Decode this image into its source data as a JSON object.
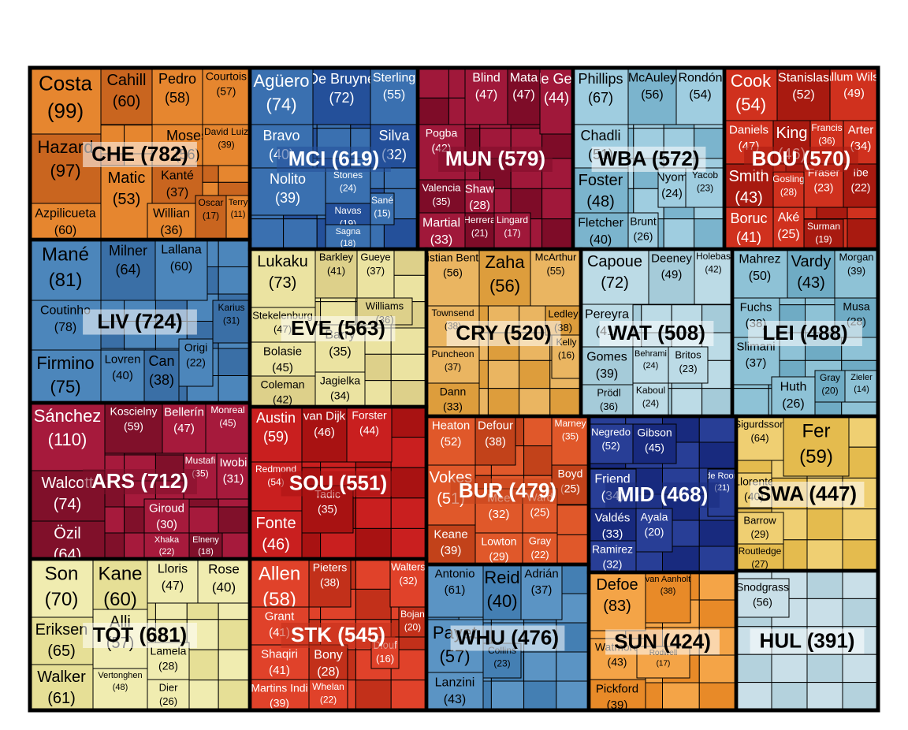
{
  "chart_data": {
    "type": "treemap",
    "title": "",
    "teams": [
      {
        "name": "CHE",
        "total": 782,
        "color": "#e6862f",
        "color_dark": "#c9651f",
        "label_light": false,
        "players": [
          {
            "name": "Costa",
            "value": 99
          },
          {
            "name": "Cahill",
            "value": 60
          },
          {
            "name": "Pedro",
            "value": 58
          },
          {
            "name": "Courtois",
            "value": 57
          },
          {
            "name": "Hazard",
            "value": 97
          },
          {
            "name": "Moses",
            "value": 56
          },
          {
            "name": "David Luiz",
            "value": 39
          },
          {
            "name": "Kanté",
            "value": 37
          },
          {
            "name": "Azpilicueta",
            "value": 60
          },
          {
            "name": "Matic",
            "value": 53
          },
          {
            "name": "Oscar",
            "value": 17
          },
          {
            "name": "Terry",
            "value": 11
          },
          {
            "name": "Willian",
            "value": 36
          }
        ]
      },
      {
        "name": "MCI",
        "total": 619,
        "color": "#3a70b0",
        "color_dark": "#24509a",
        "label_light": true,
        "players": [
          {
            "name": "Agüero",
            "value": 74
          },
          {
            "name": "De Bruyne",
            "value": 72
          },
          {
            "name": "Sterling",
            "value": 55
          },
          {
            "name": "Bravo",
            "value": 40
          },
          {
            "name": "Silva",
            "value": 32
          },
          {
            "name": "Nolito",
            "value": 39
          },
          {
            "name": "Stones",
            "value": 24
          },
          {
            "name": "Navas",
            "value": 19
          },
          {
            "name": "Sané",
            "value": 15
          },
          {
            "name": "Sagna",
            "value": 18
          }
        ]
      },
      {
        "name": "MUN",
        "total": 579,
        "color": "#a0183a",
        "color_dark": "#7e0c28",
        "label_light": true,
        "players": [
          {
            "name": "Blind",
            "value": 47
          },
          {
            "name": "Mata",
            "value": 47
          },
          {
            "name": "de Gea",
            "value": 44
          },
          {
            "name": "Pogba",
            "value": 42
          },
          {
            "name": "Valencia",
            "value": 35
          },
          {
            "name": "Shaw",
            "value": 28
          },
          {
            "name": "Martial",
            "value": 33
          },
          {
            "name": "Herrera",
            "value": 21
          },
          {
            "name": "Lingard",
            "value": 17
          }
        ]
      },
      {
        "name": "WBA",
        "total": 572,
        "color": "#9fcde0",
        "color_dark": "#7bb4cd",
        "label_light": false,
        "players": [
          {
            "name": "Phillips",
            "value": 67
          },
          {
            "name": "McAuley",
            "value": 56
          },
          {
            "name": "Rondón",
            "value": 54
          },
          {
            "name": "Chadli",
            "value": 51
          },
          {
            "name": "Foster",
            "value": 48
          },
          {
            "name": "Nyom",
            "value": 24
          },
          {
            "name": "Yacob",
            "value": 23
          },
          {
            "name": "Fletcher",
            "value": 40
          },
          {
            "name": "Brunt",
            "value": 26
          }
        ]
      },
      {
        "name": "BOU",
        "total": 570,
        "color": "#d0311e",
        "color_dark": "#a81a10",
        "label_light": true,
        "players": [
          {
            "name": "Cook",
            "value": 54
          },
          {
            "name": "Stanislas",
            "value": 52
          },
          {
            "name": "Callum Wilson",
            "value": 49
          },
          {
            "name": "Daniels",
            "value": 47
          },
          {
            "name": "King",
            "value": 46
          },
          {
            "name": "Francis",
            "value": 36
          },
          {
            "name": "Arter",
            "value": 34
          },
          {
            "name": "Smith",
            "value": 43
          },
          {
            "name": "Gosling",
            "value": 28
          },
          {
            "name": "Fraser",
            "value": 23
          },
          {
            "name": "Ibe",
            "value": 22
          },
          {
            "name": "Boruc",
            "value": 41
          },
          {
            "name": "Aké",
            "value": 25
          },
          {
            "name": "Surman",
            "value": 19
          }
        ]
      },
      {
        "name": "LIV",
        "total": 724,
        "color": "#4c86bb",
        "color_dark": "#3a6fa6",
        "label_light": false,
        "players": [
          {
            "name": "Mané",
            "value": 81
          },
          {
            "name": "Milner",
            "value": 64
          },
          {
            "name": "Lallana",
            "value": 60
          },
          {
            "name": "Coutinho",
            "value": 78
          },
          {
            "name": "Karius",
            "value": 31
          },
          {
            "name": "Firmino",
            "value": 75
          },
          {
            "name": "Lovren",
            "value": 40
          },
          {
            "name": "Can",
            "value": 38
          },
          {
            "name": "Origi",
            "value": 22
          }
        ]
      },
      {
        "name": "EVE",
        "total": 563,
        "color": "#ebe3a1",
        "color_dark": "#ddd08a",
        "label_light": false,
        "players": [
          {
            "name": "Lukaku",
            "value": 73
          },
          {
            "name": "Barkley",
            "value": 41
          },
          {
            "name": "Gueye",
            "value": 37
          },
          {
            "name": "Stekelenburg",
            "value": 47
          },
          {
            "name": "Williams",
            "value": 36
          },
          {
            "name": "Bolasie",
            "value": 45
          },
          {
            "name": "Barry",
            "value": 35
          },
          {
            "name": "Coleman",
            "value": 42
          },
          {
            "name": "Jagielka",
            "value": 34
          }
        ]
      },
      {
        "name": "CRY",
        "total": 520,
        "color": "#eab561",
        "color_dark": "#dd9d3c",
        "label_light": false,
        "players": [
          {
            "name": "Christian Benteke",
            "value": 56
          },
          {
            "name": "Zaha",
            "value": 56
          },
          {
            "name": "McArthur",
            "value": 55
          },
          {
            "name": "Townsend",
            "value": 38
          },
          {
            "name": "Ledley",
            "value": 38
          },
          {
            "name": "Kelly",
            "value": 16
          },
          {
            "name": "Puncheon",
            "value": 37
          },
          {
            "name": "Dann",
            "value": 33
          }
        ]
      },
      {
        "name": "WAT",
        "total": 508,
        "color": "#bcdbe6",
        "color_dark": "#a5cbd9",
        "label_light": false,
        "players": [
          {
            "name": "Capoue",
            "value": 72
          },
          {
            "name": "Deeney",
            "value": 49
          },
          {
            "name": "Holebas",
            "value": 42
          },
          {
            "name": "Pereyra",
            "value": 41
          },
          {
            "name": "Gomes",
            "value": 39
          },
          {
            "name": "Behrami",
            "value": 24
          },
          {
            "name": "Britos",
            "value": 23
          },
          {
            "name": "Prödl",
            "value": 36
          },
          {
            "name": "Kaboul",
            "value": 24
          }
        ]
      },
      {
        "name": "LEI",
        "total": 488,
        "color": "#8ec2d6",
        "color_dark": "#6fabc4",
        "label_light": false,
        "players": [
          {
            "name": "Mahrez",
            "value": 50
          },
          {
            "name": "Vardy",
            "value": 43
          },
          {
            "name": "Morgan",
            "value": 39
          },
          {
            "name": "Fuchs",
            "value": 38
          },
          {
            "name": "Musa",
            "value": 28
          },
          {
            "name": "Slimani",
            "value": 37
          },
          {
            "name": "Huth",
            "value": 26
          },
          {
            "name": "Gray",
            "value": 20
          },
          {
            "name": "Zieler",
            "value": 14
          }
        ]
      },
      {
        "name": "ARS",
        "total": 712,
        "color": "#a61a3c",
        "color_dark": "#80102a",
        "label_light": true,
        "players": [
          {
            "name": "Sánchez",
            "value": 110
          },
          {
            "name": "Koscielny",
            "value": 59
          },
          {
            "name": "Bellerín",
            "value": 47
          },
          {
            "name": "Monreal",
            "value": 45
          },
          {
            "name": "Walcott",
            "value": 74
          },
          {
            "name": "Mustafi",
            "value": 35
          },
          {
            "name": "Iwobi",
            "value": 31
          },
          {
            "name": "Özil",
            "value": 64
          },
          {
            "name": "Giroud",
            "value": 30
          },
          {
            "name": "Xhaka",
            "value": 22
          },
          {
            "name": "Elneny",
            "value": 18
          }
        ]
      },
      {
        "name": "SOU",
        "total": 551,
        "color": "#c91f1f",
        "color_dark": "#a81212",
        "label_light": true,
        "players": [
          {
            "name": "Austin",
            "value": 59
          },
          {
            "name": "van Dijk",
            "value": 46
          },
          {
            "name": "Forster",
            "value": 44
          },
          {
            "name": "Redmond",
            "value": 54
          },
          {
            "name": "Tadic",
            "value": 35
          },
          {
            "name": "Fonte",
            "value": 46
          }
        ]
      },
      {
        "name": "BUR",
        "total": 479,
        "color": "#e0582a",
        "color_dark": "#c2421a",
        "label_light": true,
        "players": [
          {
            "name": "Heaton",
            "value": 52
          },
          {
            "name": "Defour",
            "value": 38
          },
          {
            "name": "Marney",
            "value": 35
          },
          {
            "name": "Vokes",
            "value": 51
          },
          {
            "name": "Boyd",
            "value": 25
          },
          {
            "name": "Mee",
            "value": 32
          },
          {
            "name": "Ward",
            "value": 25
          },
          {
            "name": "Keane",
            "value": 39
          },
          {
            "name": "Lowton",
            "value": 29
          },
          {
            "name": "Gray",
            "value": 22
          }
        ]
      },
      {
        "name": "MID",
        "total": 468,
        "color": "#283e96",
        "color_dark": "#182a7e",
        "label_light": true,
        "players": [
          {
            "name": "Negredo",
            "value": 52
          },
          {
            "name": "Gibson",
            "value": 45
          },
          {
            "name": "Friend",
            "value": 34
          },
          {
            "name": "de Roon",
            "value": 21
          },
          {
            "name": "Valdés",
            "value": 33
          },
          {
            "name": "Ayala",
            "value": 20
          },
          {
            "name": "Ramirez",
            "value": 32
          }
        ]
      },
      {
        "name": "SWA",
        "total": 447,
        "color": "#efcf72",
        "color_dark": "#e4bb4e",
        "label_light": false,
        "players": [
          {
            "name": "Sigurdsson",
            "value": 64
          },
          {
            "name": "Fer",
            "value": 59
          },
          {
            "name": "Llorente",
            "value": 40
          },
          {
            "name": "Barrow",
            "value": 29
          },
          {
            "name": "Routledge",
            "value": 27
          }
        ]
      },
      {
        "name": "TOT",
        "total": 681,
        "color": "#f0ecb0",
        "color_dark": "#e6df96",
        "label_light": false,
        "players": [
          {
            "name": "Son",
            "value": 70
          },
          {
            "name": "Kane",
            "value": 60
          },
          {
            "name": "Lloris",
            "value": 47
          },
          {
            "name": "Rose",
            "value": 40
          },
          {
            "name": "Eriksen",
            "value": 65
          },
          {
            "name": "Alli",
            "value": 57
          },
          {
            "name": "Lamela",
            "value": 28
          },
          {
            "name": "Walker",
            "value": 61
          },
          {
            "name": "Vertonghen",
            "value": 48
          },
          {
            "name": "Dier",
            "value": 26
          }
        ]
      },
      {
        "name": "STK",
        "total": 545,
        "color": "#e0422a",
        "color_dark": "#c2301a",
        "label_light": true,
        "players": [
          {
            "name": "Allen",
            "value": 58
          },
          {
            "name": "Pieters",
            "value": 38
          },
          {
            "name": "Walters",
            "value": 32
          },
          {
            "name": "Grant",
            "value": 41
          },
          {
            "name": "Bojan",
            "value": 20
          },
          {
            "name": "Diouf",
            "value": 16
          },
          {
            "name": "Shaqiri",
            "value": 41
          },
          {
            "name": "Bony",
            "value": 28
          },
          {
            "name": "Martins Indi",
            "value": 39
          },
          {
            "name": "Whelan",
            "value": 22
          }
        ]
      },
      {
        "name": "WHU",
        "total": 476,
        "color": "#5b94c4",
        "color_dark": "#447fb3",
        "label_light": false,
        "players": [
          {
            "name": "Antonio",
            "value": 61
          },
          {
            "name": "Reid",
            "value": 40
          },
          {
            "name": "Adrián",
            "value": 37
          },
          {
            "name": "Payet",
            "value": 57
          },
          {
            "name": "Collins",
            "value": 23
          },
          {
            "name": "Lanzini",
            "value": 43
          }
        ]
      },
      {
        "name": "SUN",
        "total": 424,
        "color": "#f4a447",
        "color_dark": "#e88a28",
        "label_light": false,
        "players": [
          {
            "name": "Defoe",
            "value": 83
          },
          {
            "name": "van Aanholt",
            "value": 38
          },
          {
            "name": "Watmore",
            "value": 43
          },
          {
            "name": "Rodwell",
            "value": 17
          },
          {
            "name": "Pickford",
            "value": 39
          }
        ]
      },
      {
        "name": "HUL",
        "total": 391,
        "color": "#c9dfe8",
        "color_dark": "#b4d2dd",
        "label_light": false,
        "players": [
          {
            "name": "Snodgrass",
            "value": 56
          }
        ]
      }
    ]
  }
}
